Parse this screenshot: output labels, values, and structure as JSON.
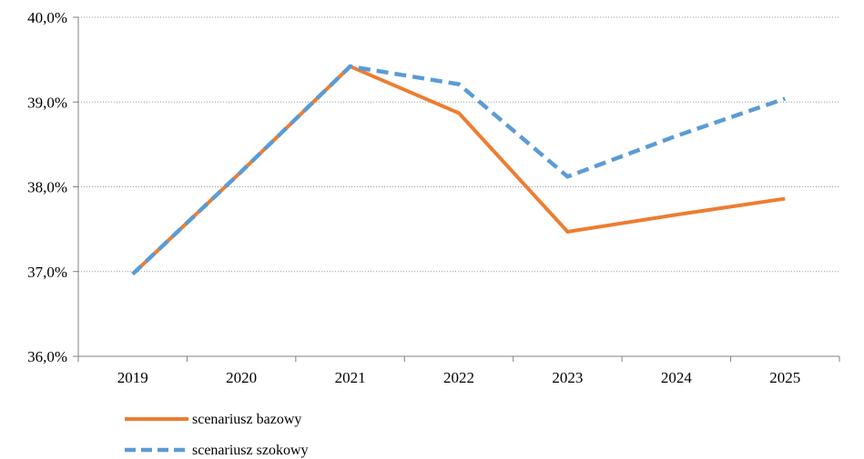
{
  "chart_data": {
    "type": "line",
    "title": "",
    "xlabel": "",
    "ylabel": "",
    "categories": [
      "2019",
      "2020",
      "2021",
      "2022",
      "2023",
      "2024",
      "2025"
    ],
    "ylim": [
      36.0,
      40.0
    ],
    "yticks": [
      36.0,
      37.0,
      38.0,
      39.0,
      40.0
    ],
    "ytick_labels": [
      "36,0%",
      "37,0%",
      "38,0%",
      "39,0%",
      "40,0%"
    ],
    "grid": "horizontal dotted",
    "legend_position": "bottom-left",
    "series": [
      {
        "name": "scenariusz bazowy",
        "values": [
          36.97,
          38.18,
          39.42,
          38.87,
          37.47,
          37.67,
          37.86
        ],
        "color": "#ed7d31",
        "style": "solid"
      },
      {
        "name": "scenariusz szokowy",
        "values": [
          36.97,
          38.18,
          39.42,
          39.21,
          38.12,
          38.6,
          39.04
        ],
        "color": "#5b9bd5",
        "style": "dashed"
      }
    ]
  }
}
